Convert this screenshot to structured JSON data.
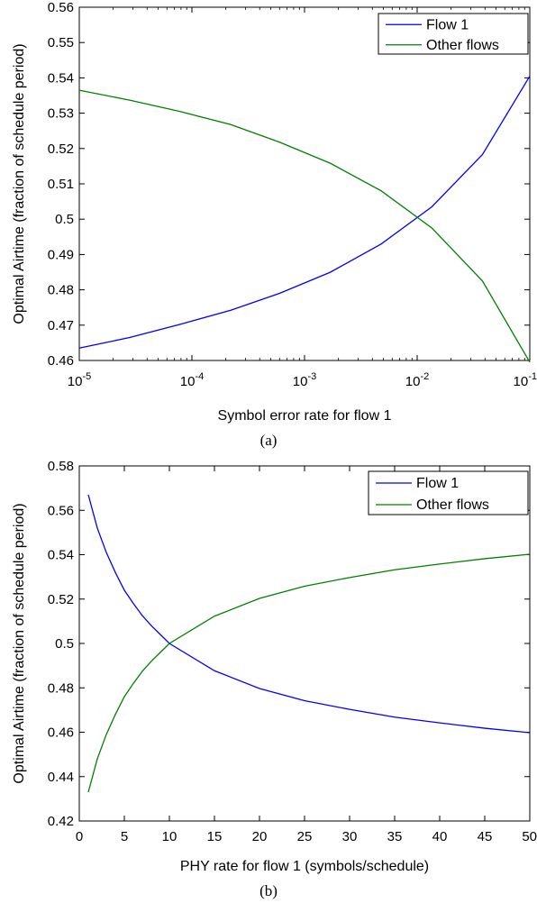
{
  "chart_data": [
    {
      "type": "line",
      "caption": "(a)",
      "xlabel": "Symbol error rate for flow 1",
      "ylabel": "Optimal Airtime (fraction of schedule period)",
      "xscale": "log",
      "xlim": [
        1e-05,
        0.1
      ],
      "ylim": [
        0.46,
        0.56
      ],
      "xticks": [
        1e-05,
        0.0001,
        0.001,
        0.01,
        0.1
      ],
      "xtick_labels": [
        {
          "base": "10",
          "exp": "-5"
        },
        {
          "base": "10",
          "exp": "-4"
        },
        {
          "base": "10",
          "exp": "-3"
        },
        {
          "base": "10",
          "exp": "-2"
        },
        {
          "base": "10",
          "exp": "-1"
        }
      ],
      "yticks": [
        0.46,
        0.47,
        0.48,
        0.49,
        0.5,
        0.51,
        0.52,
        0.53,
        0.54,
        0.55,
        0.56
      ],
      "ytick_labels": [
        "0.46",
        "0.47",
        "0.48",
        "0.49",
        "0.5",
        "0.51",
        "0.52",
        "0.53",
        "0.54",
        "0.55",
        "0.56"
      ],
      "legend_position": "top-right",
      "series": [
        {
          "name": "Flow 1",
          "color": "#0000ff",
          "points": [
            [
              1e-05,
              0.4635
            ],
            [
              2.8e-05,
              0.4665
            ],
            [
              7.8e-05,
              0.4702
            ],
            [
              0.00022,
              0.4742
            ],
            [
              0.0006,
              0.479
            ],
            [
              0.0017,
              0.485
            ],
            [
              0.0048,
              0.493
            ],
            [
              0.0135,
              0.5035
            ],
            [
              0.038,
              0.5183
            ],
            [
              0.1,
              0.5405
            ]
          ]
        },
        {
          "name": "Other flows",
          "color": "#008000",
          "points": [
            [
              1e-05,
              0.5365
            ],
            [
              2.8e-05,
              0.5337
            ],
            [
              7.8e-05,
              0.5305
            ],
            [
              0.00022,
              0.5268
            ],
            [
              0.0006,
              0.5218
            ],
            [
              0.0017,
              0.5158
            ],
            [
              0.0048,
              0.508
            ],
            [
              0.0135,
              0.4975
            ],
            [
              0.038,
              0.4825
            ],
            [
              0.1,
              0.4595
            ]
          ]
        }
      ]
    },
    {
      "type": "line",
      "caption": "(b)",
      "xlabel": "PHY rate for flow 1 (symbols/schedule)",
      "ylabel": "Optimal Airtime (fraction of schedule period)",
      "xscale": "linear",
      "xlim": [
        0,
        50
      ],
      "ylim": [
        0.42,
        0.58
      ],
      "xticks": [
        0,
        5,
        10,
        15,
        20,
        25,
        30,
        35,
        40,
        45,
        50
      ],
      "xtick_labels": [
        "0",
        "5",
        "10",
        "15",
        "20",
        "25",
        "30",
        "35",
        "40",
        "45",
        "50"
      ],
      "yticks": [
        0.42,
        0.44,
        0.46,
        0.48,
        0.5,
        0.52,
        0.54,
        0.56,
        0.58
      ],
      "ytick_labels": [
        "0.42",
        "0.44",
        "0.46",
        "0.48",
        "0.5",
        "0.52",
        "0.54",
        "0.56",
        "0.58"
      ],
      "legend_position": "top-right",
      "series": [
        {
          "name": "Flow 1",
          "color": "#0000ff",
          "points": [
            [
              1,
              0.567
            ],
            [
              2,
              0.552
            ],
            [
              3,
              0.541
            ],
            [
              4,
              0.532
            ],
            [
              5,
              0.524
            ],
            [
              6,
              0.518
            ],
            [
              7,
              0.5125
            ],
            [
              8,
              0.508
            ],
            [
              9,
              0.504
            ],
            [
              10,
              0.5
            ],
            [
              15,
              0.4877
            ],
            [
              20,
              0.4797
            ],
            [
              25,
              0.4742
            ],
            [
              30,
              0.4703
            ],
            [
              35,
              0.4668
            ],
            [
              40,
              0.4642
            ],
            [
              45,
              0.4618
            ],
            [
              50,
              0.4598
            ]
          ]
        },
        {
          "name": "Other flows",
          "color": "#008000",
          "points": [
            [
              1,
              0.433
            ],
            [
              2,
              0.448
            ],
            [
              3,
              0.459
            ],
            [
              4,
              0.468
            ],
            [
              5,
              0.476
            ],
            [
              6,
              0.482
            ],
            [
              7,
              0.4875
            ],
            [
              8,
              0.492
            ],
            [
              9,
              0.496
            ],
            [
              10,
              0.5
            ],
            [
              15,
              0.5123
            ],
            [
              20,
              0.5203
            ],
            [
              25,
              0.5258
            ],
            [
              30,
              0.5297
            ],
            [
              35,
              0.5332
            ],
            [
              40,
              0.5358
            ],
            [
              45,
              0.5382
            ],
            [
              50,
              0.5402
            ]
          ]
        }
      ]
    }
  ]
}
